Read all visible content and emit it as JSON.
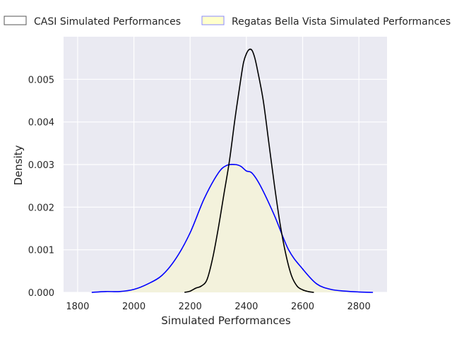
{
  "chart_data": {
    "type": "area",
    "title": "",
    "xlabel": "Simulated Performances",
    "ylabel": "Density",
    "xlim": [
      1750,
      2900
    ],
    "ylim": [
      0,
      0.006
    ],
    "x_ticks": [
      1800,
      2000,
      2200,
      2400,
      2600,
      2800
    ],
    "y_ticks": [
      0.0,
      0.001,
      0.002,
      0.003,
      0.004,
      0.005
    ],
    "grid": true,
    "legend_placement": "top, above plot",
    "series": [
      {
        "name": "CASI Simulated Performances",
        "color": "#000000",
        "fill": "none",
        "legend_fill": "none",
        "legend_edge": "#555555",
        "x": [
          2180,
          2200,
          2220,
          2240,
          2260,
          2280,
          2300,
          2320,
          2340,
          2360,
          2380,
          2390,
          2400,
          2410,
          2420,
          2430,
          2440,
          2460,
          2480,
          2500,
          2520,
          2540,
          2560,
          2580,
          2600,
          2620,
          2640
        ],
        "y": [
          0.0,
          3e-05,
          0.0001,
          0.00015,
          0.0003,
          0.0008,
          0.0015,
          0.0023,
          0.0031,
          0.0041,
          0.005,
          0.0054,
          0.0056,
          0.0057,
          0.00568,
          0.0055,
          0.0052,
          0.0045,
          0.0035,
          0.0025,
          0.0016,
          0.0009,
          0.0004,
          0.00015,
          6e-05,
          2e-05,
          0.0
        ]
      },
      {
        "name": "Regatas Bella Vista Simulated Performances",
        "color": "#0000ff",
        "fill": "#f3f2dc",
        "legend_fill": "#ffffcc",
        "legend_edge": "#8888ff",
        "x": [
          1850,
          1900,
          1950,
          2000,
          2050,
          2100,
          2150,
          2200,
          2250,
          2300,
          2330,
          2360,
          2380,
          2400,
          2420,
          2450,
          2500,
          2550,
          2600,
          2650,
          2700,
          2750,
          2800,
          2850
        ],
        "y": [
          0.0,
          2e-05,
          2e-05,
          7e-05,
          0.0002,
          0.0004,
          0.0008,
          0.0014,
          0.0022,
          0.0028,
          0.00298,
          0.003,
          0.00296,
          0.00285,
          0.0028,
          0.0025,
          0.0018,
          0.001,
          0.00055,
          0.0002,
          7e-05,
          3e-05,
          1e-05,
          0.0
        ]
      }
    ]
  }
}
